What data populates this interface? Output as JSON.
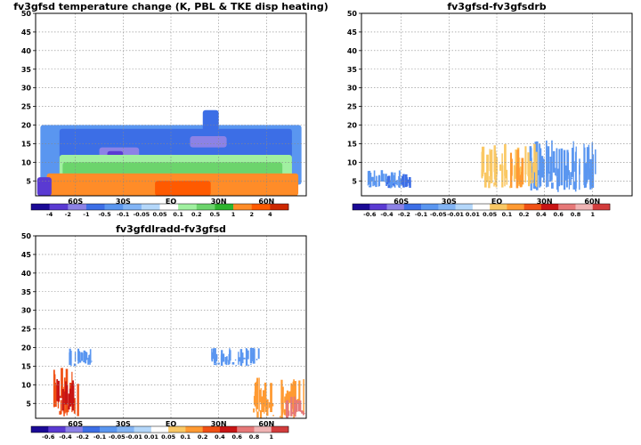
{
  "chart_data": [
    {
      "type": "heatmap",
      "title": "fv3gfsd temperature change (K, PBL & TKE disp heating)",
      "xlabel": "",
      "ylabel": "",
      "x_ticks": [
        "60S",
        "30S",
        "EQ",
        "30N",
        "60N"
      ],
      "x_tick_values": [
        -60,
        -30,
        0,
        30,
        60
      ],
      "xlim": [
        -85,
        85
      ],
      "y_ticks": [
        "5",
        "10",
        "15",
        "20",
        "25",
        "30",
        "35",
        "40",
        "45",
        "50"
      ],
      "y_tick_values": [
        5,
        10,
        15,
        20,
        25,
        30,
        35,
        40,
        45,
        50
      ],
      "ylim": [
        1,
        50
      ],
      "grid": true,
      "colorbar": {
        "labels": [
          "-4",
          "-2",
          "-1",
          "-0.5",
          "-0.1",
          "-0.05",
          "0.05",
          "0.1",
          "0.2",
          "0.5",
          "1",
          "2",
          "4"
        ],
        "colors": [
          "#1b0a96",
          "#5a3ad2",
          "#8c82e6",
          "#3c6ee6",
          "#5a96f0",
          "#82b4f5",
          "#b4d7fa",
          "#ffffff",
          "#a0f0a0",
          "#6cd46c",
          "#2eb42e",
          "#ff8c28",
          "#ff5a00",
          "#cd2800"
        ]
      },
      "fields": [
        {
          "value": -0.1,
          "lat": [
            -82,
            82
          ],
          "z": [
            4,
            20
          ]
        },
        {
          "value": -0.5,
          "lat": [
            -70,
            76
          ],
          "z": [
            9,
            19
          ]
        },
        {
          "value": -1,
          "lat": [
            -45,
            -20
          ],
          "z": [
            11,
            14
          ]
        },
        {
          "value": -2,
          "lat": [
            -40,
            -30
          ],
          "z": [
            11.5,
            13
          ]
        },
        {
          "value": -1,
          "lat": [
            12,
            35
          ],
          "z": [
            14,
            17
          ]
        },
        {
          "value": -0.5,
          "lat": [
            20,
            30
          ],
          "z": [
            18,
            24
          ]
        },
        {
          "value": 0.2,
          "lat": [
            -70,
            76
          ],
          "z": [
            3,
            12
          ]
        },
        {
          "value": 0.5,
          "lat": [
            -68,
            70
          ],
          "z": [
            3,
            10
          ]
        },
        {
          "value": 2,
          "lat": [
            -78,
            80
          ],
          "z": [
            1,
            7
          ]
        },
        {
          "value": 4,
          "lat": [
            -10,
            25
          ],
          "z": [
            1,
            5
          ]
        },
        {
          "value": -2,
          "lat": [
            -84,
            -75
          ],
          "z": [
            1,
            6
          ]
        }
      ]
    },
    {
      "type": "heatmap",
      "title": "fv3gfsd-fv3gfsdrb",
      "xlabel": "",
      "ylabel": "",
      "x_ticks": [
        "60S",
        "30S",
        "EQ",
        "30N",
        "60N"
      ],
      "x_tick_values": [
        -60,
        -30,
        0,
        30,
        60
      ],
      "xlim": [
        -85,
        85
      ],
      "y_ticks": [
        "5",
        "10",
        "15",
        "20",
        "25",
        "30",
        "35",
        "40",
        "45",
        "50"
      ],
      "y_tick_values": [
        5,
        10,
        15,
        20,
        25,
        30,
        35,
        40,
        45,
        50
      ],
      "ylim": [
        1,
        50
      ],
      "grid": true,
      "colorbar": {
        "labels": [
          "-0.6",
          "-0.4",
          "-0.2",
          "-0.1",
          "-0.05",
          "-0.01",
          "0.01",
          "0.05",
          "0.1",
          "0.2",
          "0.4",
          "0.6",
          "0.8",
          "1"
        ],
        "colors": [
          "#1b0a96",
          "#5a3ad2",
          "#8c82e6",
          "#3c6ee6",
          "#5a96f0",
          "#82b4f5",
          "#b4d7fa",
          "#ffffff",
          "#fac864",
          "#ff9a32",
          "#f05014",
          "#c81414",
          "#e67878",
          "#f0b4b4",
          "#d23c3c"
        ]
      },
      "fields": [
        {
          "value": 0.05,
          "lat": [
            -84,
            60
          ],
          "z": [
            3,
            20
          ]
        },
        {
          "value": -0.05,
          "lat": [
            20,
            62
          ],
          "z": [
            2,
            16
          ]
        },
        {
          "value": 0.1,
          "lat": [
            -10,
            25
          ],
          "z": [
            3,
            15
          ]
        },
        {
          "value": 0.2,
          "lat": [
            8,
            18
          ],
          "z": [
            3,
            14
          ]
        },
        {
          "value": -0.1,
          "lat": [
            -70,
            -55
          ],
          "z": [
            3,
            7
          ]
        },
        {
          "value": -0.05,
          "lat": [
            -82,
            -60
          ],
          "z": [
            3,
            8
          ]
        }
      ]
    },
    {
      "type": "heatmap",
      "title": "fv3gfdlradd-fv3gfsd",
      "xlabel": "",
      "ylabel": "",
      "x_ticks": [
        "60S",
        "30S",
        "EQ",
        "30N",
        "60N"
      ],
      "x_tick_values": [
        -60,
        -30,
        0,
        30,
        60
      ],
      "xlim": [
        -85,
        85
      ],
      "y_ticks": [
        "5",
        "10",
        "15",
        "20",
        "25",
        "30",
        "35",
        "40",
        "45",
        "50"
      ],
      "y_tick_values": [
        5,
        10,
        15,
        20,
        25,
        30,
        35,
        40,
        45,
        50
      ],
      "ylim": [
        1,
        50
      ],
      "grid": true,
      "colorbar": {
        "labels": [
          "-0.6",
          "-0.4",
          "-0.2",
          "-0.1",
          "-0.05",
          "-0.01",
          "0.01",
          "0.05",
          "0.1",
          "0.2",
          "0.4",
          "0.6",
          "0.8",
          "1"
        ],
        "colors": [
          "#1b0a96",
          "#5a3ad2",
          "#8c82e6",
          "#3c6ee6",
          "#5a96f0",
          "#82b4f5",
          "#b4d7fa",
          "#ffffff",
          "#fac864",
          "#ff9a32",
          "#f05014",
          "#c81414",
          "#e67878",
          "#f0b4b4",
          "#d23c3c"
        ]
      },
      "fields": [
        {
          "value": 0.05,
          "lat": [
            -75,
            75
          ],
          "z": [
            1,
            19
          ]
        },
        {
          "value": -0.05,
          "lat": [
            -65,
            -50
          ],
          "z": [
            15,
            20
          ]
        },
        {
          "value": -0.05,
          "lat": [
            25,
            55
          ],
          "z": [
            15,
            20
          ]
        },
        {
          "value": 0.4,
          "lat": [
            -75,
            -58
          ],
          "z": [
            1,
            15
          ]
        },
        {
          "value": 0.6,
          "lat": [
            -72,
            -62
          ],
          "z": [
            3,
            12
          ]
        },
        {
          "value": 0.2,
          "lat": [
            50,
            84
          ],
          "z": [
            1,
            12
          ]
        },
        {
          "value": 0.8,
          "lat": [
            72,
            84
          ],
          "z": [
            1,
            7
          ]
        }
      ]
    }
  ]
}
